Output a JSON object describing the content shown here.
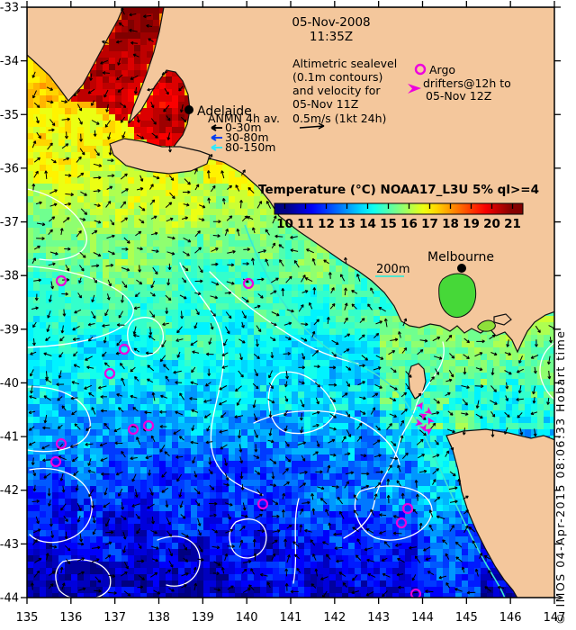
{
  "header": {
    "date": "05-Nov-2008",
    "time": "11:35Z"
  },
  "legend_altimetric": {
    "lines": [
      "Altimetric sealevel",
      "(0.1m contours)",
      "and velocity for",
      "05-Nov 11Z",
      "0.5m/s (1kt 24h)"
    ]
  },
  "legend_argo": {
    "title": "Argo",
    "line2": "drifters@12h to",
    "line3": "05-Nov 12Z"
  },
  "legend_anmn": {
    "title": "ANMN 4h av.",
    "items": [
      {
        "label": "0-30m",
        "color": "#000000"
      },
      {
        "label": "30-80m",
        "color": "#0040f0"
      },
      {
        "label": "80-150m",
        "color": "#30e8ff"
      }
    ]
  },
  "cities": {
    "adelaide": "Adelaide",
    "melbourne": "Melbourne"
  },
  "colorbar": {
    "title": "Temperature (°C) NOAA17_L3U 5% ql>=4",
    "title_color": "#990000",
    "ticks": [
      10,
      11,
      12,
      13,
      14,
      15,
      16,
      17,
      18,
      19,
      20,
      21
    ],
    "tmin": 9.5,
    "tmax": 21.5
  },
  "isobath_label": "200m",
  "credit": "© IMOS 04-Apr-2015 08:06:33 Hobart time",
  "axes": {
    "x_label_unit": "longitude_deg_east",
    "y_label_unit": "latitude_deg",
    "x_ticks": [
      135,
      136,
      137,
      138,
      139,
      140,
      141,
      142,
      143,
      144,
      145,
      146,
      147
    ],
    "y_ticks": [
      -33,
      -34,
      -35,
      -36,
      -37,
      -38,
      -39,
      -40,
      -41,
      -42,
      -43,
      -44
    ]
  },
  "map_colors": {
    "land": "#f4c79c",
    "coast": "#111111",
    "contour": "#ffffff",
    "isobath": "#3ae8d4",
    "argo_magenta": "#ee00dd",
    "vector": "#000000"
  }
}
